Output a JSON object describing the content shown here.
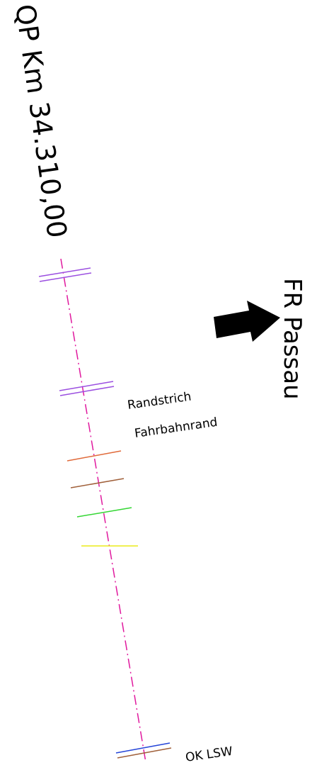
{
  "station": "QP Km 34.310,00",
  "direction": "FR Passau",
  "labels": [
    "Randstrich",
    "Fahrbahnrand",
    "OK LSW"
  ]
}
